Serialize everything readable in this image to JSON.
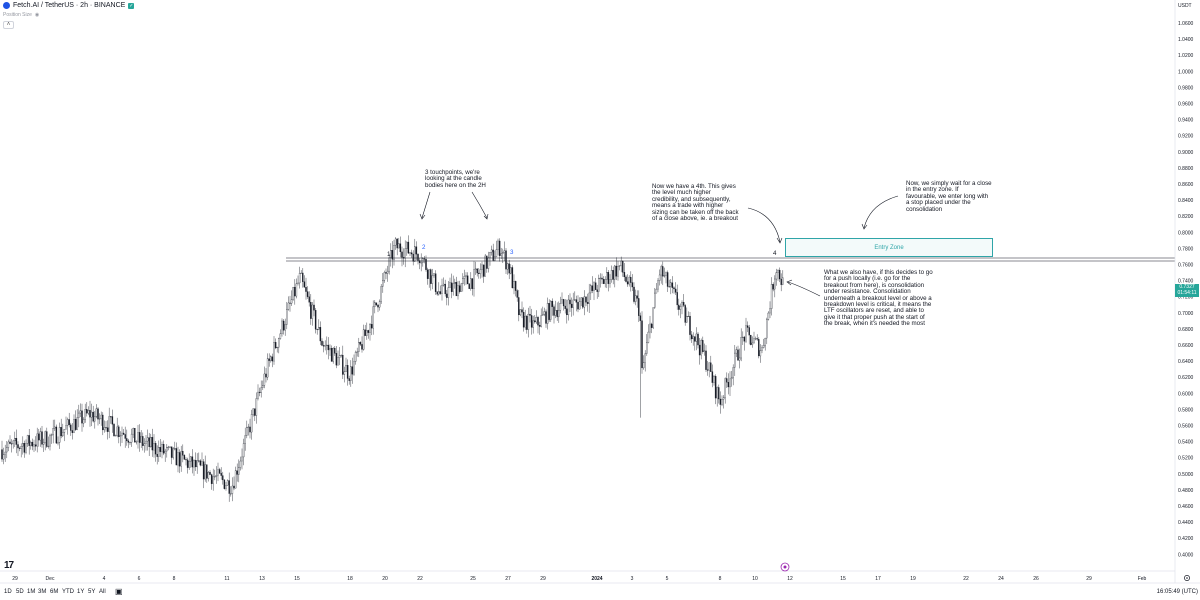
{
  "header": {
    "symbol": "Fetch.AI / TetherUS · 2h · BINANCE",
    "sub_label": "Position Size",
    "currency": "USDT"
  },
  "price_axis": {
    "ticks": [
      "1.0600",
      "1.0400",
      "1.0200",
      "1.0000",
      "0.9800",
      "0.9600",
      "0.9400",
      "0.9200",
      "0.9000",
      "0.8800",
      "0.8600",
      "0.8400",
      "0.8200",
      "0.8000",
      "0.7800",
      "0.7600",
      "0.7400",
      "0.7200",
      "0.7000",
      "0.6800",
      "0.6600",
      "0.6400",
      "0.6200",
      "0.6000",
      "0.5800",
      "0.5600",
      "0.5400",
      "0.5200",
      "0.5000",
      "0.4800",
      "0.4600",
      "0.4400",
      "0.4200",
      "0.4000",
      "0.3800"
    ],
    "last_price": "0.7327",
    "countdown": "01:54:11"
  },
  "time_axis": {
    "labels": [
      "29",
      "Dec",
      "4",
      "6",
      "8",
      "11",
      "13",
      "15",
      "18",
      "20",
      "22",
      "25",
      "27",
      "29",
      "2024",
      "3",
      "5",
      "8",
      "10",
      "12",
      "15",
      "17",
      "19",
      "22",
      "24",
      "26",
      "29",
      "Feb"
    ]
  },
  "bottom": {
    "timeframes": [
      "1D",
      "5D",
      "1M",
      "3M",
      "6M",
      "YTD",
      "1Y",
      "5Y",
      "All"
    ],
    "clock": "16:05:49 (UTC)"
  },
  "annotations": {
    "touch_labels": [
      "1",
      "2",
      "3",
      "4"
    ],
    "note_touchpoints": "3 touchpoints, we're\nlooking at the candle\nbodies here on the 2H",
    "note_fourth": "Now we have a 4th. This gives\nthe level much higher\ncredibility, and subsequently,\nmeans a trade with higher\nsizing can be taken off the back\nof a close above, ie. a breakout",
    "note_wait": "Now, we simply wait for a close\nin the entry zone. If\nfavourable, we enter long with\na stop placed under the\nconsolidation",
    "note_consolidation": "What we also have, if this decides to go\nfor a push locally (i.e. go for the\nbreakout from here), is consolidation\nunder resistance. Consolidation\nunderneath a breakout level or above a\nbreakdown level is critical, it means the\nLTF oscillators are reset, and able to\ngive it that proper push at the start of\nthe break, when it's needed the most",
    "entry_zone_label": "Entry Zone"
  },
  "colors": {
    "up": "#131722",
    "down": "#131722",
    "entry": "#2fa5a8",
    "price_tag": "#26a69a",
    "touch_num": "#2962ff"
  },
  "chart_data": {
    "type": "candlestick",
    "price_range": [
      0.37,
      1.07
    ],
    "resistance_level": 0.766,
    "entry_zone": [
      0.768,
      0.792
    ],
    "path_keypoints": [
      [
        "29",
        0.525
      ],
      [
        "Dec",
        0.54
      ],
      [
        "4",
        0.57
      ],
      [
        "6",
        0.535
      ],
      [
        "8",
        0.51
      ],
      [
        "11",
        0.48
      ],
      [
        "13",
        0.63
      ],
      [
        "15",
        0.74
      ],
      [
        "16",
        0.66
      ],
      [
        "18",
        0.62
      ],
      [
        "19",
        0.69
      ],
      [
        "20",
        0.78
      ],
      [
        "22",
        0.77
      ],
      [
        "23",
        0.72
      ],
      [
        "25",
        0.74
      ],
      [
        "26",
        0.78
      ],
      [
        "27",
        0.75
      ],
      [
        "28",
        0.69
      ],
      [
        "29",
        0.68
      ],
      [
        "30",
        0.7
      ],
      [
        "2024",
        0.71
      ],
      [
        "2",
        0.755
      ],
      [
        "3",
        0.7
      ],
      [
        "3.5",
        0.62
      ],
      [
        "5",
        0.75
      ],
      [
        "6",
        0.68
      ],
      [
        "7",
        0.64
      ],
      [
        "8",
        0.585
      ],
      [
        "9",
        0.67
      ],
      [
        "10",
        0.65
      ],
      [
        "11",
        0.755
      ],
      [
        "11.5",
        0.733
      ]
    ]
  }
}
